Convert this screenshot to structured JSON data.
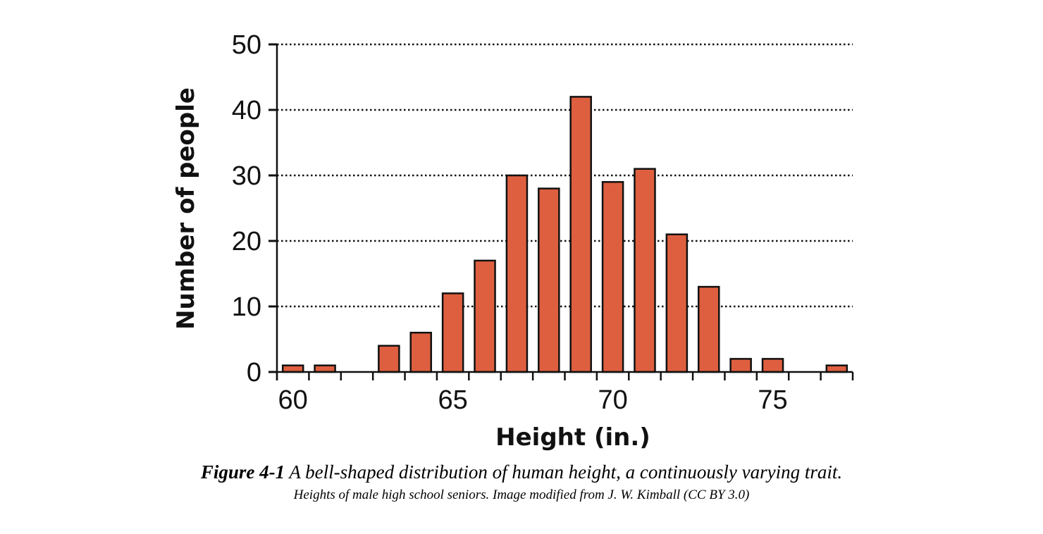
{
  "chart_data": {
    "type": "bar",
    "title": "",
    "xlabel": "Height (in.)",
    "ylabel": "Number of people",
    "x": [
      60,
      61,
      62,
      63,
      64,
      65,
      66,
      67,
      68,
      69,
      70,
      71,
      72,
      73,
      74,
      75,
      76,
      77
    ],
    "values": [
      1,
      1,
      0,
      4,
      6,
      12,
      17,
      30,
      28,
      42,
      29,
      31,
      21,
      13,
      2,
      2,
      0,
      1
    ],
    "xlim": [
      59.5,
      77.5
    ],
    "ylim": [
      0,
      50
    ],
    "xticks_labeled": [
      60,
      65,
      70,
      75
    ],
    "xtick_labels": [
      "60",
      "65",
      "70",
      "75"
    ],
    "yticks": [
      0,
      10,
      20,
      30,
      40,
      50
    ],
    "ytick_labels": [
      "0",
      "10",
      "20",
      "30",
      "40",
      "50"
    ],
    "grid": "horizontal dotted",
    "bar_color": "#DE5F3F",
    "edge_color": "#111111"
  },
  "caption": {
    "figure_number": "Figure 4-1",
    "title": " A bell-shaped distribution of human height, a continuously varying trait.",
    "subtitle": "Heights of male high school seniors. Image modified from J. W. Kimball (CC BY 3.0)"
  }
}
